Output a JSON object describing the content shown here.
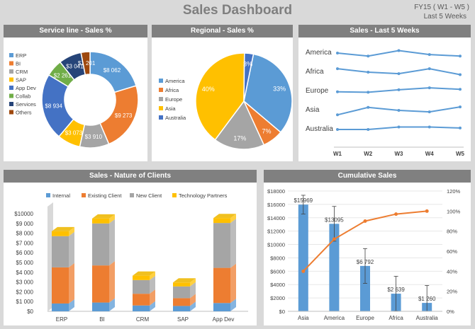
{
  "header": {
    "title": "Sales Dashboard",
    "period": "FY15 ( W1 - W5 )",
    "range": "Last 5 Weeks"
  },
  "colors": {
    "blue": "#5b9bd5",
    "orange": "#ed7d31",
    "gray": "#a5a5a5",
    "yellow": "#ffc000",
    "darkblue": "#4472c4",
    "green": "#70ad47",
    "navy": "#264478",
    "brown": "#9e480e",
    "line": "#5b9bd5",
    "pareto": "#ed7d31"
  },
  "chart_data": [
    {
      "type": "pie",
      "title": "Service line - Sales  %",
      "donut": true,
      "categories": [
        "ERP",
        "BI",
        "CRM",
        "SAP",
        "App Dev",
        "Collab",
        "Services",
        "Others"
      ],
      "values": [
        8062,
        9273,
        3910,
        3073,
        8934,
        2261,
        3041,
        1201
      ],
      "labels": [
        "$8 062",
        "$9 273",
        "$3 910",
        "$3 073",
        "$8 934",
        "$2 261",
        "$3 041",
        "$1 201"
      ],
      "legend": "left"
    },
    {
      "type": "pie",
      "title": "Regional - Sales  %",
      "categories": [
        "America",
        "Africa",
        "Europe",
        "Asia",
        "Australia"
      ],
      "values": [
        33,
        7,
        17,
        40,
        3
      ],
      "labels": [
        "33%",
        "7%",
        "17%",
        "40%",
        "3%"
      ],
      "legend": "left"
    },
    {
      "type": "line",
      "title": "Sales  - Last 5 Weeks",
      "x": [
        "W1",
        "W2",
        "W3",
        "W4",
        "W5"
      ],
      "series": [
        {
          "name": "America",
          "values": [
            0.5,
            0.2,
            0.75,
            0.35,
            0.2
          ]
        },
        {
          "name": "Africa",
          "values": [
            0.85,
            0.5,
            0.35,
            0.85,
            0.25
          ]
        },
        {
          "name": "Europe",
          "values": [
            0.45,
            0.4,
            0.65,
            0.85,
            0.7
          ]
        },
        {
          "name": "Asia",
          "values": [
            0.05,
            0.8,
            0.5,
            0.35,
            0.85
          ]
        },
        {
          "name": "Australia",
          "values": [
            0.5,
            0.5,
            0.75,
            0.75,
            0.65
          ]
        }
      ]
    },
    {
      "type": "bar",
      "stacked": true,
      "title": "Sales  - Nature of Clients",
      "categories": [
        "ERP",
        "BI",
        "CRM",
        "SAP",
        "App Dev"
      ],
      "series": [
        {
          "name": "Internal",
          "values": [
            800,
            900,
            600,
            550,
            850
          ]
        },
        {
          "name": "Existing Client",
          "values": [
            3700,
            3800,
            1200,
            800,
            3600
          ]
        },
        {
          "name": "New Client",
          "values": [
            3200,
            4300,
            1400,
            1200,
            4600
          ]
        },
        {
          "name": "Technology Partners",
          "values": [
            500,
            500,
            450,
            400,
            500
          ]
        }
      ],
      "yticks": [
        "$0",
        "$1 000",
        "$2 000",
        "$3 000",
        "$4 000",
        "$5 000",
        "$6 000",
        "$7 000",
        "$8 000",
        "$9 000",
        "$10000"
      ],
      "ylim": [
        0,
        10000
      ],
      "legend": "top"
    },
    {
      "type": "bar",
      "title": "Cumulative Sales",
      "categories": [
        "Asia",
        "America",
        "Europe",
        "Africa",
        "Australia"
      ],
      "values": [
        15969,
        13095,
        6792,
        2639,
        1260
      ],
      "labels": [
        "$15969",
        "$13095",
        "$6 792",
        "$2 639",
        "$1 260"
      ],
      "errors": [
        1400,
        2600,
        2600,
        2600,
        2600
      ],
      "cumulative_percent": [
        40,
        72,
        90,
        97,
        100
      ],
      "yticks": [
        "$0",
        "$2000",
        "$4000",
        "$6000",
        "$8000",
        "$10000",
        "$12000",
        "$14000",
        "$16000",
        "$18000"
      ],
      "ylim": [
        0,
        18000
      ],
      "y2ticks": [
        "0%",
        "20%",
        "40%",
        "60%",
        "80%",
        "100%",
        "120%"
      ],
      "y2lim": [
        0,
        120
      ]
    }
  ]
}
